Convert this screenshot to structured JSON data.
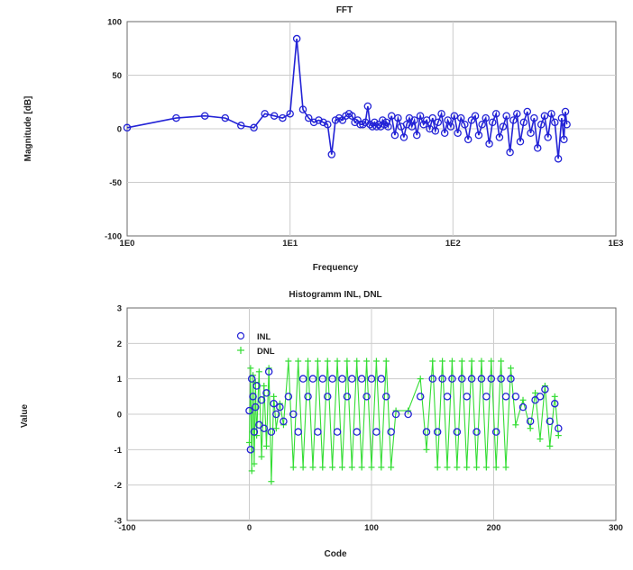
{
  "chart_data": [
    {
      "type": "line",
      "title": "FFT",
      "xlabel": "Frequency",
      "ylabel": "Magnitude [dB]",
      "xscale": "log",
      "xlim": [
        1,
        1000
      ],
      "ylim": [
        -100,
        100
      ],
      "grid": true,
      "x_ticks": [
        "1E0",
        "1E1",
        "1E2",
        "1E3"
      ],
      "y_ticks": [
        "100",
        "50",
        "0",
        "-50",
        "-100"
      ],
      "colors": {
        "series": "#2323d6"
      },
      "series": [
        {
          "x": [
            1,
            2,
            3,
            4,
            5,
            6,
            7,
            8,
            9,
            10,
            11,
            12,
            13,
            14,
            15,
            16,
            17,
            18,
            19,
            20,
            21,
            22,
            23,
            24,
            25,
            26,
            27,
            28,
            29,
            30,
            31,
            32,
            33,
            34,
            35,
            36,
            37,
            38,
            39,
            40,
            42,
            44,
            46,
            48,
            50,
            52,
            54,
            56,
            58,
            60,
            63,
            66,
            69,
            72,
            75,
            78,
            81,
            85,
            89,
            93,
            97,
            102,
            107,
            112,
            118,
            124,
            130,
            137,
            144,
            151,
            159,
            167,
            175,
            184,
            193,
            203,
            213,
            224,
            235,
            247,
            259,
            272,
            286,
            300,
            315,
            331,
            348,
            365,
            383,
            402,
            422,
            443,
            465,
            480,
            490,
            500
          ],
          "y": [
            1,
            10,
            12,
            10,
            3,
            1,
            14,
            12,
            10,
            14,
            84,
            18,
            10,
            6,
            8,
            6,
            4,
            -24,
            8,
            10,
            8,
            12,
            14,
            12,
            6,
            8,
            4,
            4,
            6,
            21,
            4,
            2,
            6,
            2,
            4,
            2,
            8,
            4,
            6,
            2,
            12,
            -6,
            10,
            2,
            -8,
            4,
            10,
            2,
            8,
            -6,
            12,
            4,
            8,
            0,
            10,
            -2,
            6,
            14,
            -4,
            8,
            2,
            12,
            -4,
            10,
            4,
            -10,
            8,
            12,
            -6,
            4,
            10,
            -14,
            6,
            14,
            -8,
            2,
            12,
            -22,
            8,
            14,
            -12,
            6,
            16,
            -4,
            10,
            -18,
            4,
            12,
            -8,
            14,
            6,
            -28,
            10,
            -10,
            16,
            4
          ]
        }
      ]
    },
    {
      "type": "scatter",
      "title": "Histogramm INL, DNL",
      "xlabel": "Code",
      "ylabel": "Value",
      "xlim": [
        -100,
        300
      ],
      "ylim": [
        -3,
        3
      ],
      "grid": true,
      "x_ticks": [
        "-100",
        "0",
        "100",
        "200",
        "300"
      ],
      "y_ticks": [
        "3",
        "2",
        "1",
        "0",
        "-1",
        "-2",
        "-3"
      ],
      "legend_position": "top-left",
      "series": [
        {
          "name": "INL",
          "color": "#2323d6",
          "x": [
            0,
            1,
            2,
            3,
            4,
            5,
            6,
            8,
            10,
            12,
            14,
            16,
            18,
            20,
            22,
            25,
            28,
            32,
            36,
            40,
            44,
            48,
            52,
            56,
            60,
            64,
            68,
            72,
            76,
            80,
            84,
            88,
            92,
            96,
            100,
            104,
            108,
            112,
            116,
            120,
            130,
            140,
            145,
            150,
            154,
            158,
            162,
            166,
            170,
            174,
            178,
            182,
            186,
            190,
            194,
            198,
            202,
            206,
            210,
            214,
            218,
            224,
            230,
            234,
            238,
            242,
            246,
            250,
            253
          ],
          "y": [
            0.1,
            -1,
            1,
            0.5,
            -0.5,
            0.2,
            0.8,
            -0.3,
            0.4,
            -0.4,
            0.6,
            1.2,
            -0.5,
            0.3,
            0,
            0.2,
            -0.2,
            0.5,
            0,
            -0.5,
            1,
            0.5,
            1,
            -0.5,
            1,
            0.5,
            1,
            -0.5,
            1,
            0.5,
            1,
            -0.5,
            1,
            0.5,
            1,
            -0.5,
            1,
            0.5,
            -0.5,
            0,
            0,
            0.5,
            -0.5,
            1,
            -0.5,
            1,
            0.5,
            1,
            -0.5,
            1,
            0.5,
            1,
            -0.5,
            1,
            0.5,
            1,
            -0.5,
            1,
            0.5,
            1,
            0.5,
            0.2,
            -0.2,
            0.4,
            0.5,
            0.7,
            -0.2,
            0.3,
            -0.4
          ]
        },
        {
          "name": "DNL",
          "color": "#33dd33",
          "x": [
            0,
            1,
            2,
            3,
            4,
            5,
            6,
            8,
            10,
            12,
            14,
            16,
            18,
            20,
            22,
            25,
            28,
            32,
            36,
            40,
            44,
            48,
            52,
            56,
            60,
            64,
            68,
            72,
            76,
            80,
            84,
            88,
            92,
            96,
            100,
            104,
            108,
            112,
            116,
            120,
            130,
            140,
            145,
            150,
            154,
            158,
            162,
            166,
            170,
            174,
            178,
            182,
            186,
            190,
            194,
            198,
            202,
            206,
            210,
            214,
            218,
            224,
            230,
            234,
            238,
            242,
            246,
            250,
            253
          ],
          "y": [
            -0.8,
            1.3,
            -1.6,
            1.1,
            -1.4,
            0.9,
            -0.6,
            1.2,
            -1.2,
            0.8,
            -0.9,
            1.3,
            -1.9,
            0.5,
            -0.4,
            0.3,
            -0.3,
            1.5,
            -1.5,
            1.5,
            -1.5,
            1.5,
            -1.5,
            1.5,
            -1.5,
            1.5,
            -1.5,
            1.5,
            -1.5,
            1.5,
            -1.5,
            1.5,
            -1.5,
            1.5,
            -1.5,
            1.5,
            -1.5,
            1.5,
            -1.5,
            0.1,
            0.1,
            1,
            -1,
            1.5,
            -1.5,
            1.5,
            -1.5,
            1.5,
            -1.5,
            1.5,
            -1.5,
            1.5,
            -1.5,
            1.5,
            -1.5,
            1.5,
            -1.5,
            1.5,
            -1.5,
            1.3,
            -0.3,
            0.4,
            -0.4,
            0.6,
            -0.7,
            0.8,
            -0.9,
            0.5,
            -0.6
          ]
        }
      ]
    }
  ]
}
